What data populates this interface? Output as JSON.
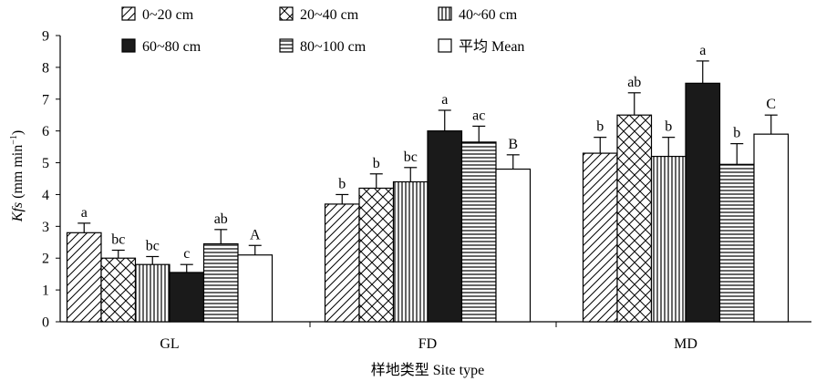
{
  "chart_data": {
    "type": "bar",
    "xlabel": "样地类型 Site type",
    "ylabel_italic": "Kfs",
    "ylabel_unit": " (mm min",
    "ylabel_sup": "−1",
    "ylabel_close": ")",
    "ylim": [
      0,
      9
    ],
    "yticks": [
      0,
      1,
      2,
      3,
      4,
      5,
      6,
      7,
      8,
      9
    ],
    "categories": [
      "GL",
      "FD",
      "MD"
    ],
    "legend_position": "top-left",
    "series": [
      {
        "name": "0~20 cm",
        "pattern": "diagonal",
        "values": [
          2.8,
          3.7,
          5.3
        ],
        "errors": [
          0.3,
          0.3,
          0.5
        ],
        "letters": [
          "a",
          "b",
          "b"
        ]
      },
      {
        "name": "20~40 cm",
        "pattern": "crosshatch",
        "values": [
          2.0,
          4.2,
          6.5
        ],
        "errors": [
          0.25,
          0.45,
          0.7
        ],
        "letters": [
          "bc",
          "b",
          "ab"
        ]
      },
      {
        "name": "40~60 cm",
        "pattern": "vertical",
        "values": [
          1.8,
          4.4,
          5.2
        ],
        "errors": [
          0.25,
          0.45,
          0.6
        ],
        "letters": [
          "bc",
          "bc",
          "b"
        ]
      },
      {
        "name": "60~80 cm",
        "pattern": "solid",
        "values": [
          1.55,
          6.0,
          7.5
        ],
        "errors": [
          0.25,
          0.65,
          0.7
        ],
        "letters": [
          "c",
          "a",
          "a"
        ]
      },
      {
        "name": "80~100 cm",
        "pattern": "horizontal",
        "values": [
          2.45,
          5.65,
          4.95
        ],
        "errors": [
          0.45,
          0.5,
          0.65
        ],
        "letters": [
          "ab",
          "ac",
          "b"
        ]
      },
      {
        "name": "平均 Mean",
        "pattern": "white",
        "values": [
          2.1,
          4.8,
          5.9
        ],
        "errors": [
          0.3,
          0.45,
          0.6
        ],
        "letters": [
          "A",
          "B",
          "C"
        ]
      }
    ]
  }
}
